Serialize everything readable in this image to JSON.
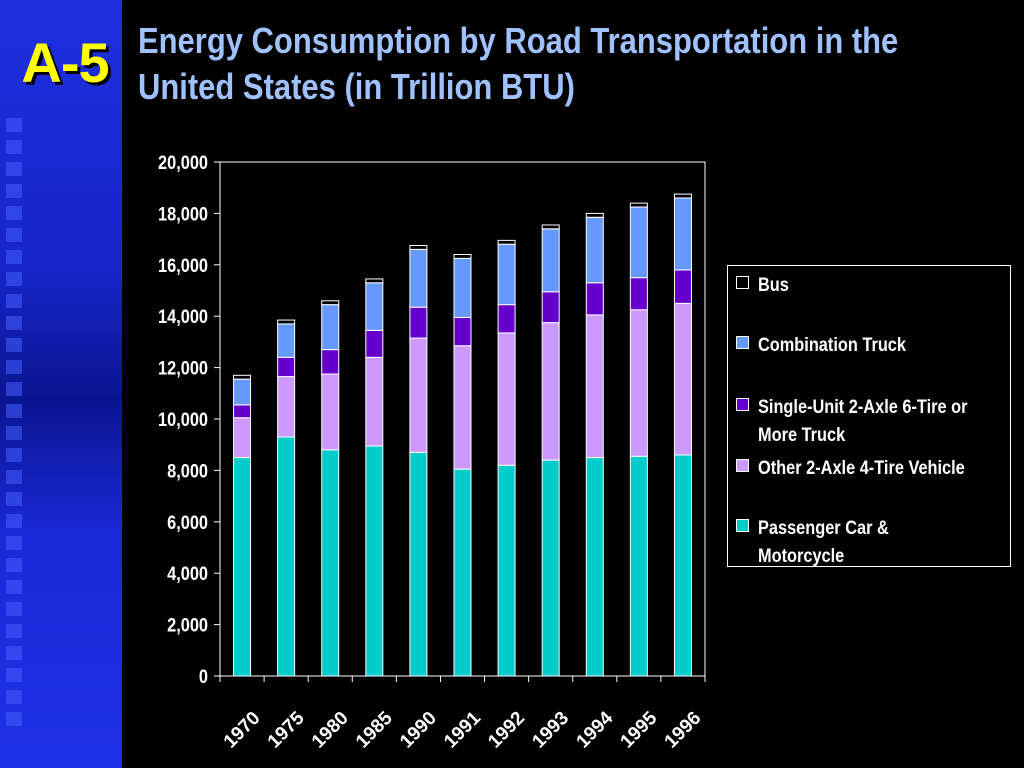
{
  "slide": {
    "badge": "A-5",
    "title_line1": "Energy Consumption by Road Transportation in the",
    "title_line2": "United States (in Trillion BTU)"
  },
  "colors": {
    "background": "#000000",
    "sidebar": "#1a2ad8",
    "badge": "#ffff00",
    "title": "#9fc2ff",
    "axis": "#ffffff"
  },
  "chart_data": {
    "type": "bar",
    "stacked": true,
    "title": "Energy Consumption by Road Transportation in the United States (in Trillion BTU)",
    "xlabel": "",
    "ylabel": "",
    "ylim": [
      0,
      20000
    ],
    "yticks": [
      0,
      2000,
      4000,
      6000,
      8000,
      10000,
      12000,
      14000,
      16000,
      18000,
      20000
    ],
    "ytick_labels": [
      "0",
      "2,000",
      "4,000",
      "6,000",
      "8,000",
      "10,000",
      "12,000",
      "14,000",
      "16,000",
      "18,000",
      "20,000"
    ],
    "categories": [
      "1970",
      "1975",
      "1980",
      "1985",
      "1990",
      "1991",
      "1992",
      "1993",
      "1994",
      "1995",
      "1996"
    ],
    "grid": false,
    "legend_position": "right",
    "series": [
      {
        "name": "Passenger Car & Motorcycle",
        "legend_lines": [
          "Passenger Car &",
          "Motorcycle"
        ],
        "color": "#00cccc",
        "values": [
          8500,
          9300,
          8800,
          8950,
          8700,
          8050,
          8200,
          8400,
          8500,
          8550,
          8600
        ]
      },
      {
        "name": "Other 2-Axle 4-Tire Vehicle",
        "legend_lines": [
          "Other 2-Axle 4-Tire Vehicle"
        ],
        "color": "#cc99ff",
        "values": [
          1550,
          2350,
          2950,
          3450,
          4450,
          4800,
          5150,
          5350,
          5550,
          5700,
          5900
        ]
      },
      {
        "name": "Single-Unit 2-Axle 6-Tire or More Truck",
        "legend_lines": [
          "Single-Unit 2-Axle 6-Tire or",
          "More Truck"
        ],
        "color": "#6600cc",
        "values": [
          500,
          750,
          950,
          1050,
          1200,
          1100,
          1100,
          1200,
          1250,
          1250,
          1300
        ]
      },
      {
        "name": "Combination Truck",
        "legend_lines": [
          "Combination Truck"
        ],
        "color": "#6699ff",
        "values": [
          1000,
          1300,
          1750,
          1850,
          2250,
          2300,
          2350,
          2450,
          2550,
          2750,
          2800
        ]
      },
      {
        "name": "Bus",
        "legend_lines": [
          "Bus"
        ],
        "color": "#000000",
        "values": [
          150,
          150,
          150,
          150,
          150,
          150,
          150,
          150,
          150,
          150,
          150
        ]
      }
    ]
  }
}
